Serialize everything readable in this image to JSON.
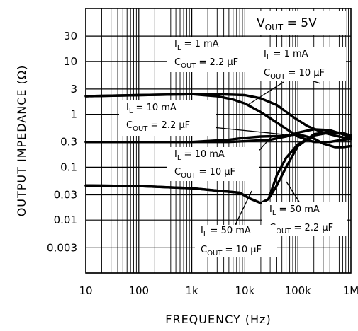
{
  "chart_data": {
    "type": "line",
    "xlabel": "FREQUENCY (Hz)",
    "ylabel": "OUTPUT IMPEDANCE (Ω)",
    "x_scale": "log",
    "y_scale": "log",
    "xlim": [
      10,
      1000000
    ],
    "ylim": [
      0.001,
      100
    ],
    "grid": true,
    "x_ticks": [
      {
        "value": 10,
        "label": "10"
      },
      {
        "value": 100,
        "label": "100"
      },
      {
        "value": 1000,
        "label": "1k"
      },
      {
        "value": 10000,
        "label": "10k"
      },
      {
        "value": 100000,
        "label": "100k"
      },
      {
        "value": 1000000,
        "label": "1M"
      }
    ],
    "y_ticks": [
      {
        "value": 30,
        "label": "30"
      },
      {
        "value": 10,
        "label": "10"
      },
      {
        "value": 3,
        "label": "3"
      },
      {
        "value": 1,
        "label": "1"
      },
      {
        "value": 0.3,
        "label": "0.3"
      },
      {
        "value": 0.1,
        "label": "0.1"
      },
      {
        "value": 0.03,
        "label": "0.03"
      },
      {
        "value": 0.01,
        "label": "0.01"
      },
      {
        "value": 0.003,
        "label": "0.003"
      }
    ],
    "condition": {
      "prefix": "V",
      "sub": "OUT",
      "rest": " = 5V"
    },
    "series": [
      {
        "points": [
          [
            10,
            2.2
          ],
          [
            100,
            2.3
          ],
          [
            1000,
            2.4
          ],
          [
            3000,
            2.4
          ],
          [
            10000,
            2.3
          ],
          [
            20000,
            2.0
          ],
          [
            40000,
            1.5
          ],
          [
            80000,
            0.9
          ],
          [
            150000,
            0.6
          ],
          [
            300000,
            0.45
          ],
          [
            600000,
            0.38
          ],
          [
            1000000,
            0.34
          ]
        ]
      },
      {
        "points": [
          [
            10,
            2.2
          ],
          [
            100,
            2.3
          ],
          [
            1000,
            2.4
          ],
          [
            3000,
            2.2
          ],
          [
            6000,
            1.9
          ],
          [
            10000,
            1.6
          ],
          [
            20000,
            1.1
          ],
          [
            50000,
            0.6
          ],
          [
            100000,
            0.38
          ],
          [
            200000,
            0.3
          ],
          [
            400000,
            0.3
          ],
          [
            700000,
            0.33
          ],
          [
            1000000,
            0.34
          ]
        ]
      },
      {
        "points": [
          [
            10,
            0.3
          ],
          [
            100,
            0.3
          ],
          [
            1000,
            0.3
          ],
          [
            5000,
            0.33
          ],
          [
            10000,
            0.36
          ],
          [
            20000,
            0.38
          ],
          [
            50000,
            0.39
          ],
          [
            100000,
            0.42
          ],
          [
            200000,
            0.35
          ],
          [
            300000,
            0.28
          ],
          [
            500000,
            0.24
          ],
          [
            700000,
            0.24
          ],
          [
            1000000,
            0.25
          ]
        ]
      },
      {
        "points": [
          [
            10,
            0.3
          ],
          [
            100,
            0.3
          ],
          [
            1000,
            0.3
          ],
          [
            5000,
            0.3
          ],
          [
            10000,
            0.31
          ],
          [
            30000,
            0.33
          ],
          [
            60000,
            0.38
          ],
          [
            100000,
            0.45
          ],
          [
            200000,
            0.52
          ],
          [
            400000,
            0.5
          ],
          [
            700000,
            0.42
          ],
          [
            1000000,
            0.37
          ]
        ]
      },
      {
        "points": [
          [
            10,
            0.045
          ],
          [
            100,
            0.044
          ],
          [
            1000,
            0.04
          ],
          [
            3000,
            0.036
          ],
          [
            8000,
            0.033
          ],
          [
            12000,
            0.026
          ],
          [
            20000,
            0.021
          ],
          [
            28000,
            0.025
          ],
          [
            40000,
            0.07
          ],
          [
            60000,
            0.15
          ],
          [
            100000,
            0.27
          ],
          [
            200000,
            0.4
          ],
          [
            400000,
            0.45
          ],
          [
            700000,
            0.43
          ],
          [
            1000000,
            0.38
          ]
        ]
      },
      {
        "points": [
          [
            10,
            0.045
          ],
          [
            100,
            0.044
          ],
          [
            1000,
            0.04
          ],
          [
            3000,
            0.036
          ],
          [
            8000,
            0.033
          ],
          [
            12000,
            0.026
          ],
          [
            20000,
            0.021
          ],
          [
            28000,
            0.025
          ],
          [
            40000,
            0.045
          ],
          [
            60000,
            0.1
          ],
          [
            100000,
            0.25
          ],
          [
            200000,
            0.42
          ],
          [
            400000,
            0.47
          ],
          [
            700000,
            0.44
          ],
          [
            1000000,
            0.4
          ]
        ]
      }
    ],
    "annotations": [
      {
        "line1": "I_L = 1 mA",
        "line2": "C_OUT = 2.2 µF"
      },
      {
        "line1": "I_L = 1 mA",
        "line2": "C_OUT = 10 µF"
      },
      {
        "line1": "I_L = 10 mA",
        "line2": "C_OUT = 2.2 µF"
      },
      {
        "line1": "I_L = 10 mA",
        "line2": "C_OUT = 10 µF"
      },
      {
        "line1": "I_L = 50 mA",
        "line2": "C_OUT = 2.2 µF"
      },
      {
        "line1": "I_L = 50 mA",
        "line2": "C_OUT = 10 µF"
      }
    ]
  }
}
